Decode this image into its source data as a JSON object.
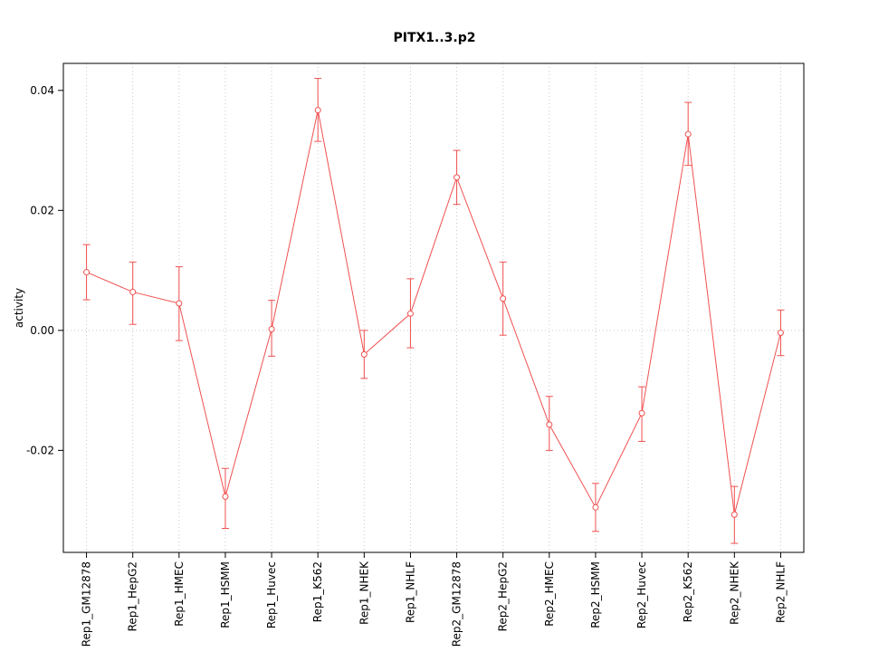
{
  "chart_data": {
    "type": "line",
    "title": "PITX1..3.p2",
    "ylabel": "activity",
    "xlabel": "",
    "legend": null,
    "grid": "dotted-vertical-per-category-and-zero-line",
    "line_color": "#f05050",
    "grid_color": "#c9c9c9",
    "axis_color": "#000000",
    "ylim": [
      -0.037,
      0.0445
    ],
    "yticks": [
      -0.02,
      0,
      0.02,
      0.04
    ],
    "categories": [
      "Rep1_GM12878",
      "Rep1_HepG2",
      "Rep1_HMEC",
      "Rep1_HSMM",
      "Rep1_Huvec",
      "Rep1_K562",
      "Rep1_NHEK",
      "Rep1_NHLF",
      "Rep2_GM12878",
      "Rep2_HepG2",
      "Rep2_HMEC",
      "Rep2_HSMM",
      "Rep2_Huvec",
      "Rep2_K562",
      "Rep2_NHEK",
      "Rep2_NHLF"
    ],
    "series": [
      {
        "name": "activity",
        "values": [
          0.0097,
          0.0064,
          0.0045,
          -0.0277,
          0.0002,
          0.0367,
          -0.004,
          0.0028,
          0.0255,
          0.0053,
          -0.0157,
          -0.0295,
          -0.0138,
          0.0327,
          -0.0307,
          -0.0004
        ],
        "upper": [
          0.0143,
          0.0114,
          0.0106,
          -0.023,
          0.005,
          0.042,
          0.0,
          0.0086,
          0.03,
          0.0114,
          -0.011,
          -0.0255,
          -0.0094,
          0.038,
          -0.026,
          0.0034
        ],
        "lower": [
          0.0051,
          0.001,
          -0.0017,
          -0.033,
          -0.0043,
          0.0315,
          -0.008,
          -0.0029,
          0.021,
          -0.0008,
          -0.02,
          -0.0335,
          -0.0185,
          0.0275,
          -0.0355,
          -0.0042
        ]
      }
    ]
  }
}
